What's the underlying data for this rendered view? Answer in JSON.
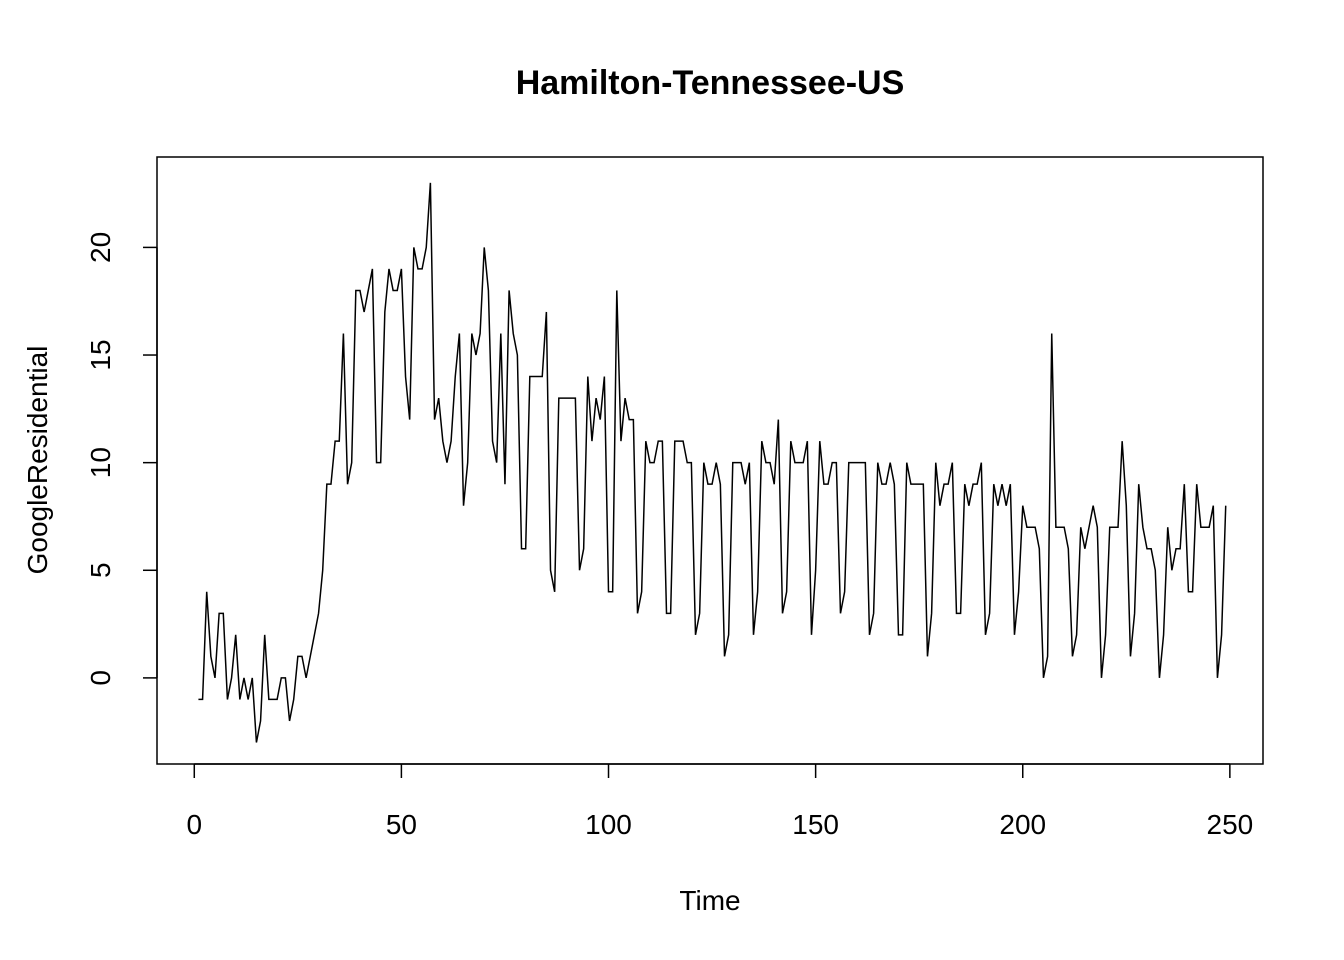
{
  "chart_data": {
    "type": "line",
    "title": "Hamilton-Tennessee-US",
    "xlabel": "Time",
    "ylabel": "GoogleResidential",
    "xlim": [
      -9,
      258
    ],
    "ylim": [
      -4,
      24.2
    ],
    "xticks": [
      0,
      50,
      100,
      150,
      200,
      250
    ],
    "yticks": [
      0,
      5,
      10,
      15,
      20
    ],
    "grid": false,
    "series": [
      {
        "x_start": 1,
        "values": [
          -1,
          -1,
          4,
          1,
          0,
          3,
          3,
          -1,
          0,
          2,
          -1,
          0,
          -1,
          0,
          -3,
          -2,
          2,
          -1,
          -1,
          -1,
          0,
          0,
          -2,
          -1,
          1,
          1,
          0,
          1,
          2,
          3,
          5,
          9,
          9,
          11,
          11,
          16,
          9,
          10,
          18,
          18,
          17,
          18,
          19,
          10,
          10,
          17,
          19,
          18,
          18,
          19,
          14,
          12,
          20,
          19,
          19,
          20,
          23,
          12,
          13,
          11,
          10,
          11,
          14,
          16,
          8,
          10,
          16,
          15,
          16,
          20,
          18,
          11,
          10,
          16,
          9,
          18,
          16,
          15,
          6,
          6,
          14,
          14,
          14,
          14,
          17,
          5,
          4,
          13,
          13,
          13,
          13,
          13,
          5,
          6,
          14,
          11,
          13,
          12,
          14,
          4,
          4,
          18,
          11,
          13,
          12,
          12,
          3,
          4,
          11,
          10,
          10,
          11,
          11,
          3,
          3,
          11,
          11,
          11,
          10,
          10,
          2,
          3,
          10,
          9,
          9,
          10,
          9,
          1,
          2,
          10,
          10,
          10,
          9,
          10,
          2,
          4,
          11,
          10,
          10,
          9,
          12,
          3,
          4,
          11,
          10,
          10,
          10,
          11,
          2,
          5,
          11,
          9,
          9,
          10,
          10,
          3,
          4,
          10,
          10,
          10,
          10,
          10,
          2,
          3,
          10,
          9,
          9,
          10,
          9,
          2,
          2,
          10,
          9,
          9,
          9,
          9,
          1,
          3,
          10,
          8,
          9,
          9,
          10,
          3,
          3,
          9,
          8,
          9,
          9,
          10,
          2,
          3,
          9,
          8,
          9,
          8,
          9,
          2,
          4,
          8,
          7,
          7,
          7,
          6,
          0,
          1,
          16,
          7,
          7,
          7,
          6,
          1,
          2,
          7,
          6,
          7,
          8,
          7,
          0,
          2,
          7,
          7,
          7,
          11,
          8,
          1,
          3,
          9,
          7,
          6,
          6,
          5,
          0,
          2,
          7,
          5,
          6,
          6,
          9,
          4,
          4,
          9,
          7,
          7,
          7,
          8,
          0,
          2,
          8
        ]
      }
    ]
  }
}
